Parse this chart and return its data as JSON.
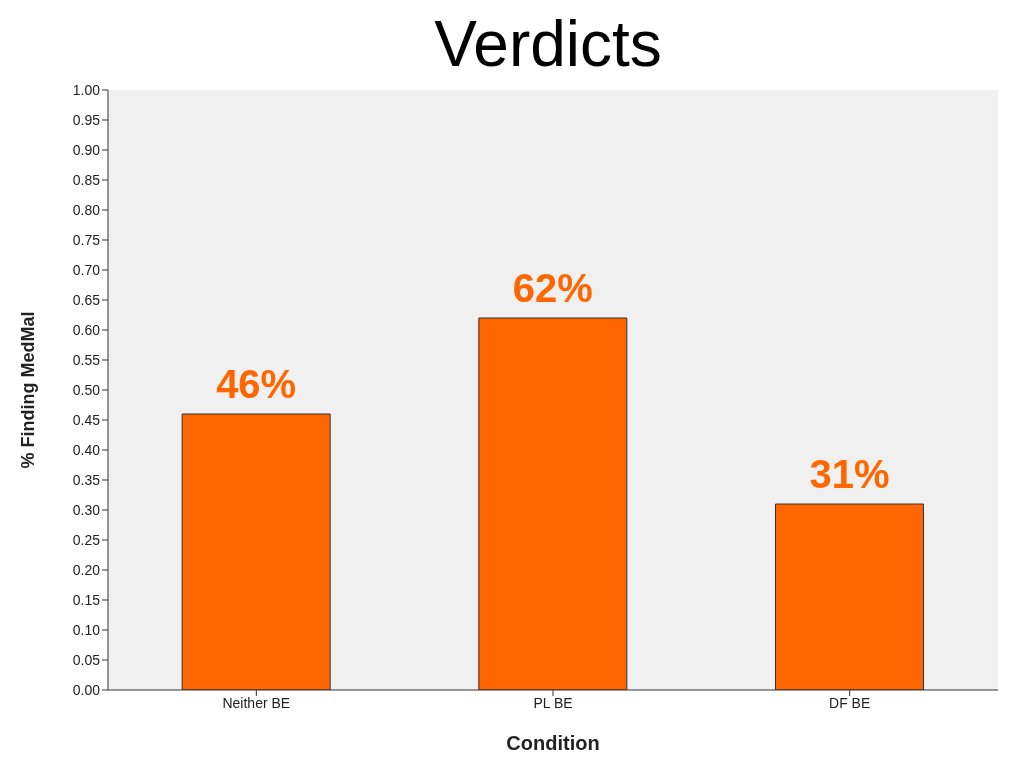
{
  "chart_data": {
    "type": "bar",
    "title": "Verdicts",
    "xlabel": "Condition",
    "ylabel": "% Finding MedMal",
    "categories": [
      "Neither BE",
      "PL BE",
      "DF BE"
    ],
    "values": [
      0.46,
      0.62,
      0.31
    ],
    "value_labels": [
      "46%",
      "62%",
      "31%"
    ],
    "color": "#ff6600",
    "ylim": [
      0,
      1
    ],
    "yticks": [
      {
        "value": 0,
        "label": "0.00"
      },
      {
        "value": 0.05,
        "label": "0.05"
      },
      {
        "value": 0.1,
        "label": "0.10"
      },
      {
        "value": 0.15,
        "label": "0.15"
      },
      {
        "value": 0.2,
        "label": "0.20"
      },
      {
        "value": 0.25,
        "label": "0.25"
      },
      {
        "value": 0.3,
        "label": "0.30"
      },
      {
        "value": 0.35,
        "label": "0.35"
      },
      {
        "value": 0.4,
        "label": "0.40"
      },
      {
        "value": 0.45,
        "label": "0.45"
      },
      {
        "value": 0.5,
        "label": "0.50"
      },
      {
        "value": 0.55,
        "label": "0.55"
      },
      {
        "value": 0.6,
        "label": "0.60"
      },
      {
        "value": 0.65,
        "label": "0.65"
      },
      {
        "value": 0.7,
        "label": "0.70"
      },
      {
        "value": 0.75,
        "label": "0.75"
      },
      {
        "value": 0.8,
        "label": "0.80"
      },
      {
        "value": 0.85,
        "label": "0.85"
      },
      {
        "value": 0.9,
        "label": "0.90"
      },
      {
        "value": 0.95,
        "label": "0.95"
      },
      {
        "value": 1,
        "label": "1.00"
      }
    ],
    "grid": false,
    "legend": false
  }
}
